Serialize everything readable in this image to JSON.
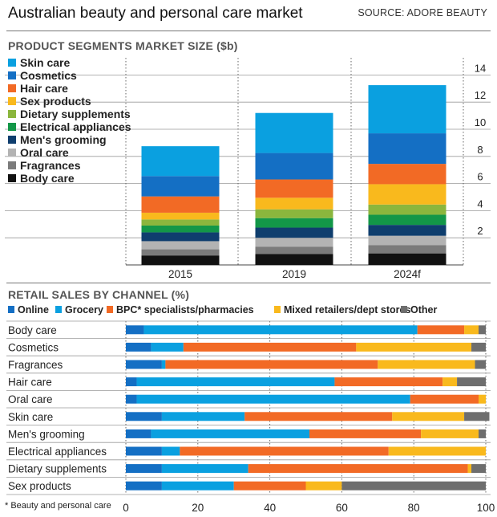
{
  "header": {
    "title": "Australian beauty and personal care market",
    "source": "SOURCE: ADORE BEAUTY"
  },
  "colors": {
    "Skin care": "#0aa0e0",
    "Cosmetics": "#146fc4",
    "Hair care": "#f26a25",
    "Sex products": "#f9b91d",
    "Dietary supplements": "#8bb63d",
    "Electrical appliances": "#139748",
    "Men's grooming": "#0f3e6e",
    "Oral care": "#b3b3b3",
    "Fragrances": "#7b7b7b",
    "Body care": "#111111",
    "Online": "#146fc4",
    "Grocery": "#0aa0e0",
    "BPC* specialists/pharmacies": "#f26a25",
    "Mixed retailers/dept stores": "#f9b91d",
    "Other": "#6e6e6e"
  },
  "footnote": "* Beauty and personal care",
  "chart_data": [
    {
      "type": "bar",
      "stacked": true,
      "title": "PRODUCT SEGMENTS MARKET SIZE ($b)",
      "categories": [
        "2015",
        "2019",
        "2024f"
      ],
      "ylim": [
        0,
        14
      ],
      "yticks": [
        2,
        4,
        6,
        8,
        10,
        12,
        14
      ],
      "grid": true,
      "legend": "top-left",
      "series": [
        {
          "name": "Body care",
          "values": [
            0.7,
            0.8,
            0.85
          ]
        },
        {
          "name": "Fragrances",
          "values": [
            0.45,
            0.55,
            0.6
          ]
        },
        {
          "name": "Oral care",
          "values": [
            0.6,
            0.65,
            0.7
          ]
        },
        {
          "name": "Men's grooming",
          "values": [
            0.65,
            0.75,
            0.8
          ]
        },
        {
          "name": "Electrical appliances",
          "values": [
            0.5,
            0.7,
            0.75
          ]
        },
        {
          "name": "Dietary supplements",
          "values": [
            0.45,
            0.65,
            0.75
          ]
        },
        {
          "name": "Sex products",
          "values": [
            0.5,
            0.85,
            1.5
          ]
        },
        {
          "name": "Hair care",
          "values": [
            1.2,
            1.35,
            1.5
          ]
        },
        {
          "name": "Cosmetics",
          "values": [
            1.5,
            1.95,
            2.25
          ]
        },
        {
          "name": "Skin care",
          "values": [
            2.2,
            2.95,
            3.55
          ]
        }
      ]
    },
    {
      "type": "bar",
      "orientation": "horizontal",
      "stacked": true,
      "title": "RETAIL SALES BY CHANNEL (%)",
      "categories": [
        "Body care",
        "Cosmetics",
        "Fragrances",
        "Hair care",
        "Oral care",
        "Skin care",
        "Men's grooming",
        "Electrical appliances",
        "Dietary supplements",
        "Sex products"
      ],
      "xlim": [
        0,
        100
      ],
      "xticks": [
        0,
        20,
        40,
        60,
        80,
        100
      ],
      "grid": true,
      "legend": "top",
      "series": [
        {
          "name": "Online",
          "values": [
            5,
            7,
            10,
            3,
            3,
            10,
            7,
            10,
            10,
            10
          ]
        },
        {
          "name": "Grocery",
          "values": [
            76,
            9,
            1,
            55,
            76,
            23,
            44,
            5,
            24,
            20
          ]
        },
        {
          "name": "BPC* specialists/pharmacies",
          "values": [
            13,
            48,
            59,
            30,
            19,
            41,
            31,
            58,
            61,
            20
          ]
        },
        {
          "name": "Mixed retailers/dept stores",
          "values": [
            4,
            32,
            27,
            4,
            2,
            20,
            16,
            27,
            1,
            10
          ]
        },
        {
          "name": "Other",
          "values": [
            2,
            4,
            3,
            8,
            0,
            7,
            2,
            0,
            4,
            40
          ]
        }
      ]
    }
  ]
}
